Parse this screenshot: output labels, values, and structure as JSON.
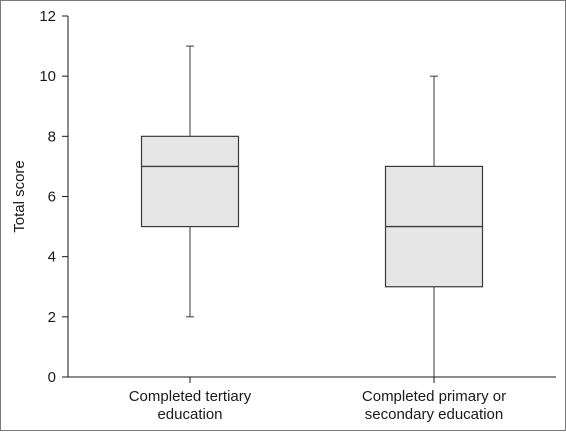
{
  "chart_data": {
    "type": "box",
    "title": "",
    "xlabel": "",
    "ylabel": "Total score",
    "ylim": [
      0,
      12
    ],
    "yticks": [
      0,
      2,
      4,
      6,
      8,
      10,
      12
    ],
    "grid": false,
    "legend": "none",
    "box_fill": "#e6e6e6",
    "line_color": "#3a3a3a",
    "categories": [
      {
        "label_lines": [
          "Completed tertiary",
          "education"
        ],
        "min": 2,
        "q1": 5,
        "median": 7,
        "q3": 8,
        "max": 11
      },
      {
        "label_lines": [
          "Completed primary or",
          "secondary education"
        ],
        "min": 0,
        "q1": 3,
        "median": 5,
        "q3": 7,
        "max": 10
      }
    ]
  }
}
